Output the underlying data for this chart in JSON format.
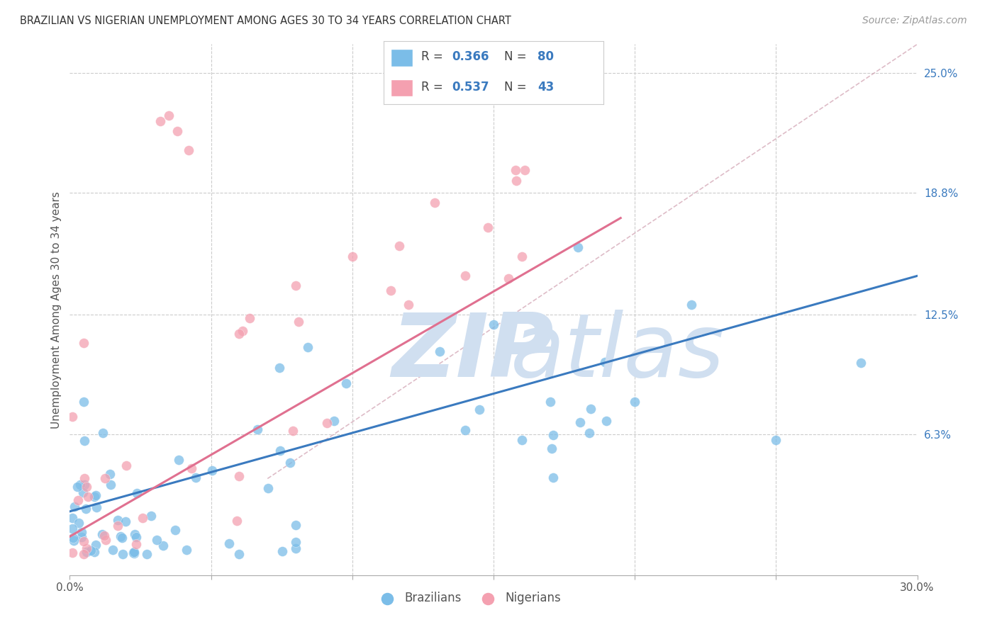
{
  "title": "BRAZILIAN VS NIGERIAN UNEMPLOYMENT AMONG AGES 30 TO 34 YEARS CORRELATION CHART",
  "source": "Source: ZipAtlas.com",
  "ylabel": "Unemployment Among Ages 30 to 34 years",
  "xlim": [
    0.0,
    0.3
  ],
  "ylim": [
    -0.01,
    0.265
  ],
  "ytick_labels_right": [
    "25.0%",
    "18.8%",
    "12.5%",
    "6.3%"
  ],
  "ytick_vals_right": [
    0.25,
    0.188,
    0.125,
    0.063
  ],
  "brazil_R": 0.366,
  "brazil_N": 80,
  "nigeria_R": 0.537,
  "nigeria_N": 43,
  "brazil_color": "#7bbde8",
  "nigeria_color": "#f4a0b0",
  "brazil_line_color": "#3a7abf",
  "nigeria_line_color": "#e07090",
  "watermark_color": "#d0dff0"
}
